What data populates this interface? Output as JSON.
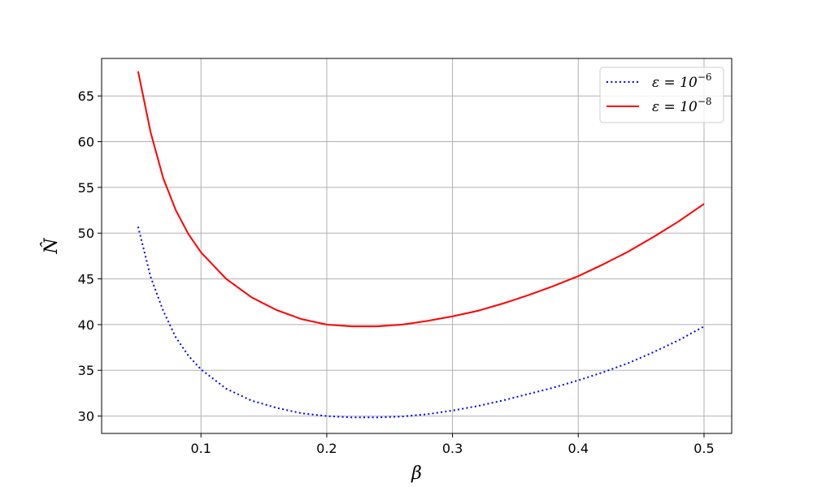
{
  "chart_data": {
    "type": "line",
    "title": "",
    "xlabel": "β",
    "ylabel": "N̂",
    "xlim": [
      0.021,
      0.522
    ],
    "ylim": [
      28.1,
      69.1
    ],
    "xticks": [
      0.1,
      0.2,
      0.3,
      0.4,
      0.5
    ],
    "xtick_labels": [
      "0.1",
      "0.2",
      "0.3",
      "0.4",
      "0.5"
    ],
    "yticks": [
      30,
      35,
      40,
      45,
      50,
      55,
      60,
      65
    ],
    "ytick_labels": [
      "30",
      "35",
      "40",
      "45",
      "50",
      "55",
      "60",
      "65"
    ],
    "grid": true,
    "legend_position": "top-right",
    "series": [
      {
        "name": "ε = 10⁻⁶",
        "name_base": "ε = 10",
        "name_exp": "−6",
        "color": "#0000ff",
        "style": "dotted",
        "x": [
          0.05,
          0.06,
          0.07,
          0.08,
          0.09,
          0.1,
          0.12,
          0.14,
          0.16,
          0.18,
          0.2,
          0.22,
          0.24,
          0.26,
          0.28,
          0.3,
          0.32,
          0.34,
          0.36,
          0.38,
          0.4,
          0.42,
          0.44,
          0.46,
          0.48,
          0.5
        ],
        "y": [
          50.7,
          45.2,
          41.5,
          38.6,
          36.6,
          35.1,
          33.0,
          31.7,
          30.9,
          30.3,
          30.0,
          29.85,
          29.85,
          29.95,
          30.2,
          30.6,
          31.1,
          31.7,
          32.4,
          33.1,
          33.9,
          34.8,
          35.8,
          37.0,
          38.3,
          39.8
        ]
      },
      {
        "name": "ε = 10⁻⁸",
        "name_base": "ε = 10",
        "name_exp": "−8",
        "color": "#ff0000",
        "style": "solid",
        "x": [
          0.05,
          0.06,
          0.07,
          0.08,
          0.09,
          0.1,
          0.12,
          0.14,
          0.16,
          0.18,
          0.2,
          0.22,
          0.24,
          0.26,
          0.28,
          0.3,
          0.32,
          0.34,
          0.36,
          0.38,
          0.4,
          0.42,
          0.44,
          0.46,
          0.48,
          0.5
        ],
        "y": [
          67.7,
          61.0,
          56.0,
          52.5,
          49.9,
          47.9,
          45.0,
          43.0,
          41.6,
          40.6,
          40.0,
          39.8,
          39.8,
          40.0,
          40.4,
          40.9,
          41.5,
          42.3,
          43.2,
          44.2,
          45.3,
          46.6,
          48.0,
          49.6,
          51.3,
          53.2
        ]
      }
    ]
  }
}
